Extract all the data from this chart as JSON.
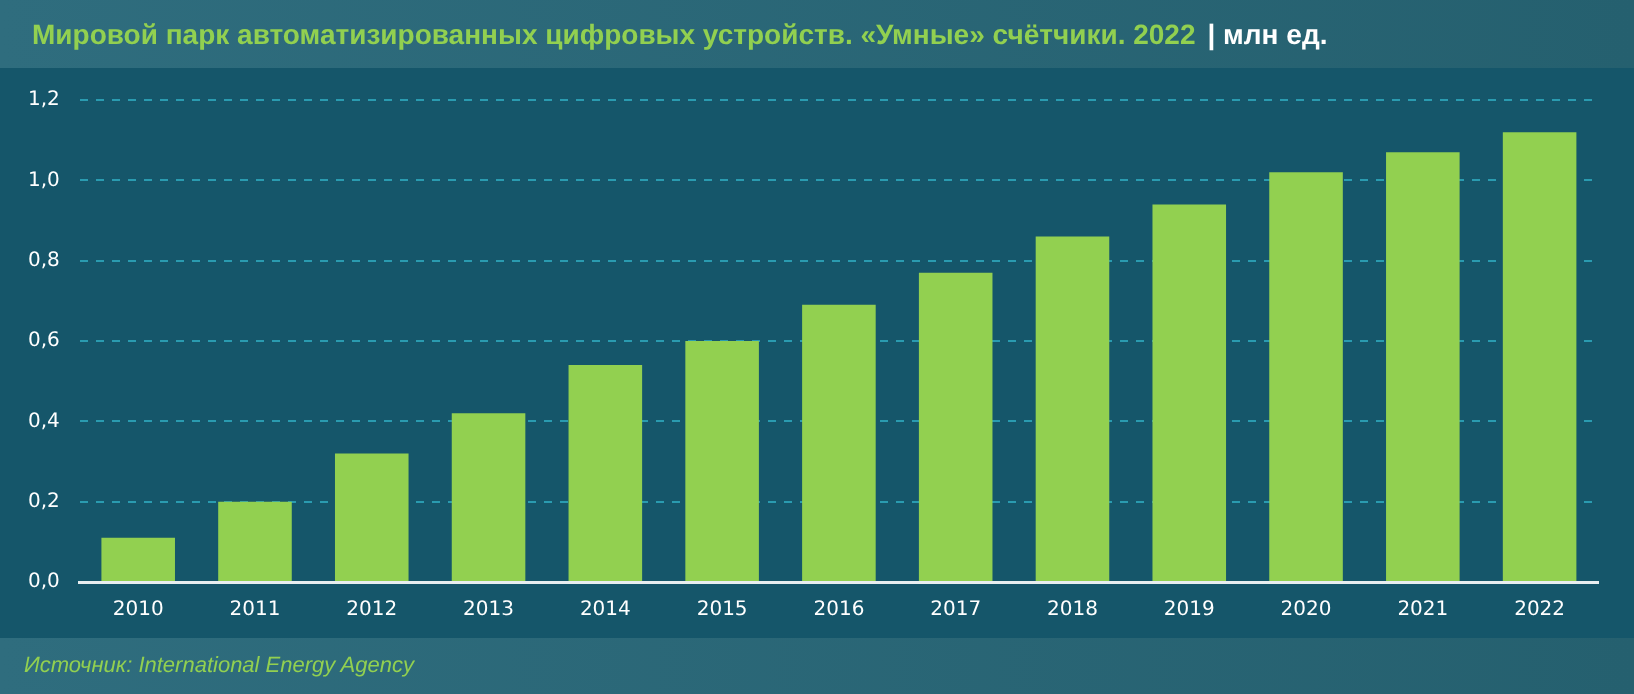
{
  "chart_data": {
    "type": "bar",
    "title": "Мировой парк автоматизированных цифровых устройств. «Умные» счётчики. 2022",
    "subtitle": "| млн ед.",
    "categories": [
      "2010",
      "2011",
      "2012",
      "2013",
      "2014",
      "2015",
      "2016",
      "2017",
      "2018",
      "2019",
      "2020",
      "2021",
      "2022"
    ],
    "values": [
      0.11,
      0.2,
      0.32,
      0.42,
      0.54,
      0.6,
      0.69,
      0.77,
      0.86,
      0.94,
      1.02,
      1.07,
      1.12
    ],
    "color": "#92d050",
    "ylim": [
      0,
      1.2
    ],
    "yticks": [
      {
        "value": 0,
        "label": "0,0"
      },
      {
        "value": 0.2,
        "label": "0,2"
      },
      {
        "value": 0.4,
        "label": "0,4"
      },
      {
        "value": 0.6,
        "label": "0,6"
      },
      {
        "value": 0.8,
        "label": "0,8"
      },
      {
        "value": 1,
        "label": "1,0"
      },
      {
        "value": 1.2,
        "label": "1,2"
      }
    ],
    "grid": "y",
    "legend": false,
    "annotations": [
      "Источник: International Energy Agency"
    ]
  }
}
